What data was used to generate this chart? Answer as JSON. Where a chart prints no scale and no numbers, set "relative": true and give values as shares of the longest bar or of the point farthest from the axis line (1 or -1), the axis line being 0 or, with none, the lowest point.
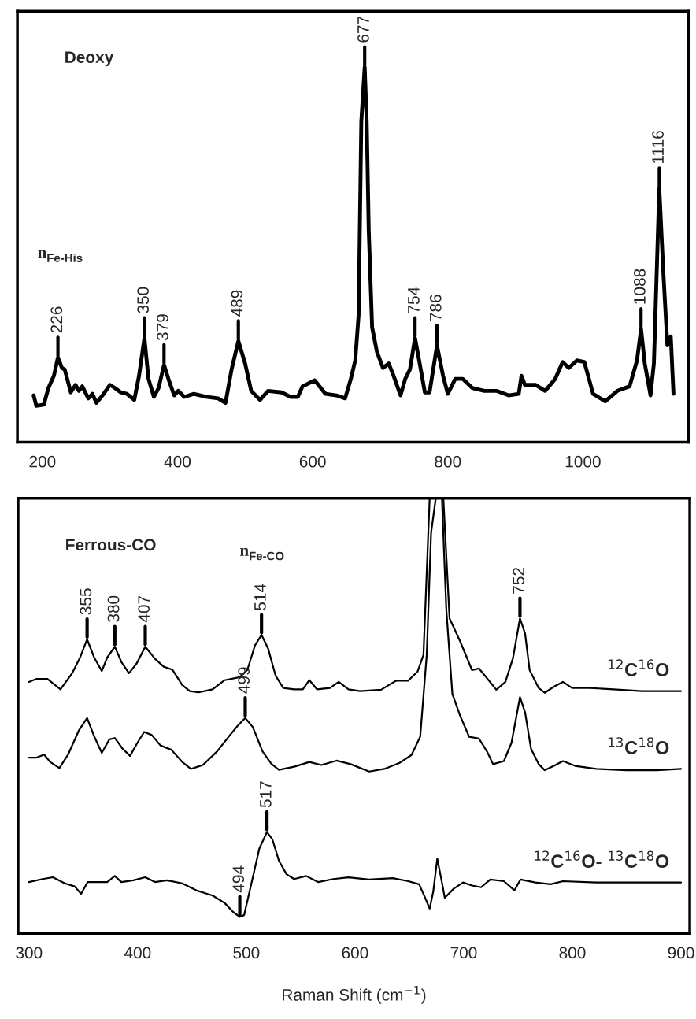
{
  "chart_data": [
    {
      "type": "line",
      "title": "Deoxy",
      "relative": true,
      "xlim": [
        163,
        1156
      ],
      "xticks": [
        200,
        400,
        600,
        800,
        1000
      ],
      "annotations": [
        "n$_{Fe-His}$",
        {
          "text": "226",
          "x": 223,
          "y": 0.226
        },
        {
          "text": "350",
          "x": 351,
          "y": 0.278
        },
        {
          "text": "379",
          "x": 380,
          "y": 0.206
        },
        {
          "text": "489",
          "x": 490,
          "y": 0.27
        },
        {
          "text": "677",
          "x": 677,
          "y": 1.0
        },
        {
          "text": "754",
          "x": 751.5,
          "y": 0.278
        },
        {
          "text": "786",
          "x": 784,
          "y": 0.258
        },
        {
          "text": "1088",
          "x": 1086,
          "y": 0.302
        },
        {
          "text": "1116",
          "x": 1113,
          "y": 0.677
        }
      ],
      "series": [
        {
          "color": "#000000",
          "x": [
            187,
            191,
            202,
            209,
            217,
            223,
            229,
            233,
            242,
            249,
            254,
            259,
            268,
            274,
            280,
            289,
            300,
            307,
            316,
            325,
            336,
            343,
            351,
            357,
            365,
            372,
            380,
            388,
            395,
            401,
            410,
            424,
            442,
            460,
            471,
            480,
            490,
            500,
            509,
            522,
            534,
            554,
            567,
            578,
            585,
            603,
            619,
            635,
            648,
            656.5,
            663,
            668,
            672,
            677,
            680,
            683,
            688,
            695,
            704,
            712.5,
            719,
            730,
            737,
            744,
            751.5,
            760,
            766,
            773,
            784,
            793,
            800,
            811,
            822,
            836,
            854,
            872,
            890,
            905,
            909,
            914,
            930,
            944,
            959,
            970,
            979,
            991,
            1002,
            1015,
            1033,
            1051,
            1069,
            1080,
            1086,
            1091.5,
            1100,
            1105,
            1113,
            1119,
            1125,
            1130,
            1134
          ],
          "values": [
            0.125,
            0.097,
            0.1,
            0.145,
            0.177,
            0.226,
            0.198,
            0.194,
            0.133,
            0.153,
            0.137,
            0.149,
            0.117,
            0.129,
            0.105,
            0.125,
            0.153,
            0.145,
            0.133,
            0.129,
            0.113,
            0.177,
            0.278,
            0.169,
            0.121,
            0.145,
            0.206,
            0.161,
            0.125,
            0.137,
            0.121,
            0.129,
            0.121,
            0.117,
            0.105,
            0.194,
            0.27,
            0.21,
            0.137,
            0.113,
            0.137,
            0.133,
            0.121,
            0.121,
            0.149,
            0.165,
            0.129,
            0.125,
            0.117,
            0.169,
            0.218,
            0.339,
            0.855,
            1.0,
            0.855,
            0.565,
            0.306,
            0.242,
            0.198,
            0.21,
            0.181,
            0.125,
            0.169,
            0.194,
            0.278,
            0.194,
            0.133,
            0.133,
            0.258,
            0.177,
            0.129,
            0.169,
            0.169,
            0.145,
            0.137,
            0.137,
            0.125,
            0.129,
            0.177,
            0.153,
            0.153,
            0.137,
            0.169,
            0.214,
            0.198,
            0.218,
            0.214,
            0.129,
            0.109,
            0.137,
            0.149,
            0.218,
            0.302,
            0.21,
            0.125,
            0.21,
            0.677,
            0.452,
            0.258,
            0.282,
            0.129
          ]
        }
      ]
    },
    {
      "type": "line",
      "title": "Ferrous-CO",
      "relative": true,
      "xlabel": "Raman Shift (cm$^{−1}$)",
      "xlim": [
        290,
        908
      ],
      "xticks": [
        300,
        400,
        500,
        600,
        700,
        800,
        900
      ],
      "annotations": [
        "n$_{Fe-CO}$",
        {
          "text": "355",
          "x": 353.5,
          "y": 0.676
        },
        {
          "text": "380",
          "x": 379,
          "y": 0.659
        },
        {
          "text": "407",
          "x": 407,
          "y": 0.659
        },
        {
          "text": "514",
          "x": 514,
          "y": 0.686
        },
        {
          "text": "752",
          "x": 751.8,
          "y": 0.724
        },
        {
          "text": "499",
          "x": 499,
          "y": 0.495
        },
        {
          "text": "517",
          "x": 519,
          "y": 0.233
        },
        {
          "text": "494",
          "x": 494,
          "y": 0.038
        }
      ],
      "series": [
        {
          "name": "$^{12}$C$^{16}$O",
          "color": "#000000",
          "x": [
            300,
            307,
            317,
            329,
            340,
            347,
            353.5,
            360,
            367,
            372,
            379,
            385,
            392,
            399,
            407,
            416,
            424,
            432,
            441,
            448,
            456,
            469,
            480,
            494,
            501,
            508,
            514,
            520,
            527,
            534,
            544,
            552,
            558,
            565,
            577,
            585,
            594,
            604.6,
            624,
            638,
            649,
            657.6,
            663,
            668.7,
            681.3,
            687,
            696.6,
            707.7,
            714,
            720,
            730,
            738.4,
            745.4,
            751.8,
            756.5,
            760.7,
            769,
            774.6,
            783,
            791.3,
            799.7,
            816.4,
            844,
            863.8,
            900
          ],
          "values": [
            0.578,
            0.585,
            0.585,
            0.561,
            0.599,
            0.634,
            0.676,
            0.634,
            0.603,
            0.634,
            0.659,
            0.624,
            0.598,
            0.62,
            0.659,
            0.631,
            0.613,
            0.606,
            0.571,
            0.557,
            0.554,
            0.561,
            0.582,
            0.589,
            0.606,
            0.662,
            0.686,
            0.655,
            0.592,
            0.564,
            0.561,
            0.561,
            0.582,
            0.561,
            0.564,
            0.578,
            0.561,
            0.557,
            0.56,
            0.581,
            0.581,
            0.602,
            0.64,
            1.0,
            1.0,
            0.724,
            0.672,
            0.605,
            0.609,
            0.591,
            0.56,
            0.578,
            0.633,
            0.724,
            0.689,
            0.605,
            0.564,
            0.553,
            0.567,
            0.578,
            0.564,
            0.564,
            0.56,
            0.557,
            0.557
          ]
        },
        {
          "name": "$^{13}$C$^{18}$O",
          "color": "#000000",
          "x": [
            300,
            307,
            314,
            319.5,
            328,
            336,
            346,
            353.5,
            360,
            367,
            374,
            379,
            386,
            393,
            400,
            406,
            413,
            421,
            431,
            441,
            449,
            460,
            473,
            485,
            492,
            499,
            506,
            515,
            523,
            530,
            544,
            558,
            569,
            583,
            596,
            613,
            627,
            641,
            652,
            660,
            666,
            670,
            674.3,
            680,
            684,
            689.6,
            696.6,
            705,
            714,
            721.7,
            727,
            737,
            744,
            751.8,
            756.5,
            762,
            769,
            774.6,
            783,
            791.3,
            802.5,
            822,
            850,
            877.7,
            900
          ],
          "values": [
            0.404,
            0.404,
            0.411,
            0.394,
            0.38,
            0.411,
            0.467,
            0.495,
            0.453,
            0.415,
            0.446,
            0.449,
            0.425,
            0.408,
            0.439,
            0.463,
            0.456,
            0.432,
            0.422,
            0.394,
            0.378,
            0.387,
            0.418,
            0.456,
            0.477,
            0.495,
            0.474,
            0.418,
            0.39,
            0.376,
            0.383,
            0.394,
            0.387,
            0.397,
            0.389,
            0.372,
            0.378,
            0.392,
            0.41,
            0.452,
            0.64,
            0.92,
            1.0,
            1.0,
            0.745,
            0.55,
            0.501,
            0.452,
            0.448,
            0.417,
            0.389,
            0.396,
            0.438,
            0.543,
            0.508,
            0.424,
            0.389,
            0.375,
            0.385,
            0.396,
            0.385,
            0.378,
            0.375,
            0.375,
            0.378
          ]
        },
        {
          "name": "$^{12}$C$^{16}$O- $^{13}$C$^{18}$O",
          "color": "#000000",
          "x": [
            300,
            312.5,
            322,
            333,
            342,
            348,
            354,
            365.5,
            372,
            379,
            385,
            396,
            407,
            416,
            427,
            441,
            455,
            469,
            480,
            488,
            494,
            498,
            505,
            512,
            519,
            524,
            530,
            537,
            544,
            555,
            566,
            580,
            594,
            613,
            635,
            649,
            659,
            664.5,
            668.7,
            672,
            675.7,
            680,
            682.6,
            691,
            699.4,
            707.7,
            716,
            724.5,
            737,
            746.7,
            752.3,
            766,
            780,
            791.3,
            822,
            863.8,
            900
          ],
          "values": [
            0.118,
            0.125,
            0.129,
            0.115,
            0.108,
            0.091,
            0.118,
            0.118,
            0.118,
            0.132,
            0.118,
            0.122,
            0.129,
            0.118,
            0.122,
            0.115,
            0.098,
            0.087,
            0.07,
            0.049,
            0.038,
            0.042,
            0.118,
            0.195,
            0.233,
            0.216,
            0.167,
            0.136,
            0.125,
            0.132,
            0.118,
            0.125,
            0.129,
            0.124,
            0.127,
            0.12,
            0.113,
            0.082,
            0.057,
            0.096,
            0.172,
            0.117,
            0.082,
            0.103,
            0.117,
            0.11,
            0.106,
            0.124,
            0.12,
            0.099,
            0.124,
            0.117,
            0.113,
            0.12,
            0.117,
            0.117,
            0.117
          ]
        }
      ]
    }
  ]
}
